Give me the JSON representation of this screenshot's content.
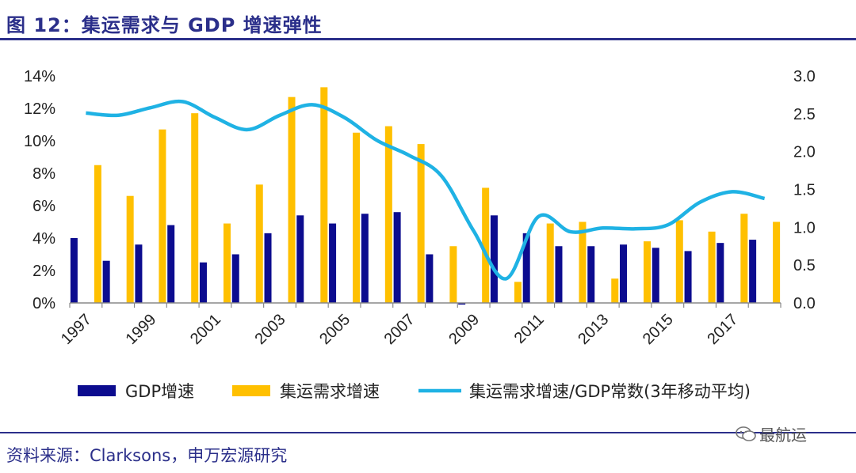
{
  "header": {
    "title": "图 12：集运需求与 GDP 增速弹性"
  },
  "footer": {
    "source": "资料来源：Clarksons，申万宏源研究",
    "watermark": "最航运"
  },
  "colors": {
    "gdp": "#0c0c8f",
    "demand": "#ffc000",
    "ratio": "#1fb2e4",
    "frame": "#2b2f8a"
  },
  "chart_data": {
    "type": "bar",
    "categories": [
      "1997",
      "1998",
      "1999",
      "2000",
      "2001",
      "2002",
      "2003",
      "2004",
      "2005",
      "2006",
      "2007",
      "2008",
      "2009",
      "2010",
      "2011",
      "2012",
      "2013",
      "2014",
      "2015",
      "2016",
      "2017",
      "2018"
    ],
    "x_tick_labels": [
      "1997",
      "1999",
      "2001",
      "2003",
      "2005",
      "2007",
      "2009",
      "2011",
      "2013",
      "2015",
      "2017"
    ],
    "series": [
      {
        "name": "GDP增速",
        "type": "bar",
        "axis": "left",
        "values": [
          4.0,
          2.6,
          3.6,
          4.8,
          2.5,
          3.0,
          4.3,
          5.4,
          4.9,
          5.5,
          5.6,
          3.0,
          -0.1,
          5.4,
          4.3,
          3.5,
          3.5,
          3.6,
          3.4,
          3.2,
          3.7,
          3.9
        ]
      },
      {
        "name": "集运需求增速",
        "type": "bar",
        "axis": "left",
        "values": [
          8.5,
          6.6,
          10.7,
          11.7,
          4.9,
          7.3,
          12.7,
          13.3,
          10.5,
          10.9,
          9.8,
          3.5,
          7.1,
          1.3,
          4.9,
          5.0,
          1.5,
          3.8,
          5.1,
          4.4,
          5.5,
          5.0
        ]
      },
      {
        "name": "集运需求增速/GDP常数(3年移动平均)",
        "type": "line",
        "axis": "right",
        "values": [
          2.51,
          2.48,
          2.58,
          2.66,
          2.45,
          2.29,
          2.48,
          2.62,
          2.45,
          2.15,
          1.95,
          1.68,
          0.95,
          0.32,
          1.14,
          0.94,
          0.99,
          0.98,
          1.03,
          1.33,
          1.47,
          1.38
        ]
      }
    ],
    "y_left": {
      "min": 0,
      "max": 14,
      "ticks": [
        "0%",
        "2%",
        "4%",
        "6%",
        "8%",
        "10%",
        "12%",
        "14%"
      ]
    },
    "y_right": {
      "min": 0,
      "max": 3.0,
      "ticks": [
        "0.0",
        "0.5",
        "1.0",
        "1.5",
        "2.0",
        "2.5",
        "3.0"
      ]
    },
    "legend": {
      "placement": "bottom"
    }
  }
}
